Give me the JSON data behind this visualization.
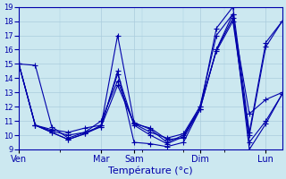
{
  "xlabel": "Température (°c)",
  "background_color": "#cce8f0",
  "grid_color": "#aaccdd",
  "line_color": "#0000aa",
  "ylim": [
    9,
    19
  ],
  "yticks": [
    9,
    10,
    11,
    12,
    13,
    14,
    15,
    16,
    17,
    18,
    19
  ],
  "day_labels": [
    "Ven",
    "Mar",
    "Sam",
    "Dim",
    "Lun"
  ],
  "day_positions": [
    0,
    5,
    7,
    11,
    15
  ],
  "lines": [
    [
      0,
      15.0,
      1,
      14.9,
      2,
      10.6,
      3,
      9.8,
      4,
      10.2,
      5,
      11.0,
      6,
      13.8,
      7,
      10.8,
      8,
      10.5,
      9,
      9.7,
      10,
      9.8,
      11,
      11.8,
      12,
      16.0,
      13,
      18.2,
      14,
      11.5,
      15,
      12.5,
      16,
      13.0
    ],
    [
      0,
      15.0,
      1,
      10.7,
      2,
      10.4,
      3,
      10.2,
      4,
      10.5,
      5,
      10.7,
      6,
      17.0,
      7,
      10.9,
      8,
      10.4,
      9,
      9.5,
      10,
      10.0,
      11,
      11.8,
      12,
      17.5,
      13,
      19.0,
      14,
      10.2,
      15,
      16.5,
      16,
      18.0
    ],
    [
      0,
      15.0,
      1,
      10.7,
      2,
      10.2,
      3,
      9.7,
      4,
      10.1,
      5,
      10.7,
      6,
      14.3,
      7,
      10.7,
      8,
      10.0,
      9,
      9.4,
      10,
      9.9,
      11,
      12.0,
      12,
      17.0,
      13,
      18.5,
      14,
      9.5,
      15,
      11.0,
      16,
      12.9
    ],
    [
      0,
      15.0,
      1,
      10.7,
      2,
      10.3,
      3,
      10.0,
      4,
      10.2,
      5,
      10.6,
      6,
      13.5,
      7,
      10.8,
      8,
      10.2,
      9,
      9.8,
      10,
      10.1,
      11,
      12.0,
      12,
      15.9,
      13,
      18.0,
      14,
      10.0,
      15,
      16.2,
      16,
      18.0
    ],
    [
      0,
      15.0,
      1,
      10.7,
      2,
      10.2,
      3,
      9.7,
      4,
      10.1,
      5,
      10.6,
      6,
      14.5,
      7,
      9.5,
      8,
      9.4,
      9,
      9.2,
      10,
      9.5,
      11,
      11.8,
      12,
      16.0,
      13,
      18.5,
      14,
      9.0,
      15,
      10.8,
      16,
      12.9
    ]
  ]
}
